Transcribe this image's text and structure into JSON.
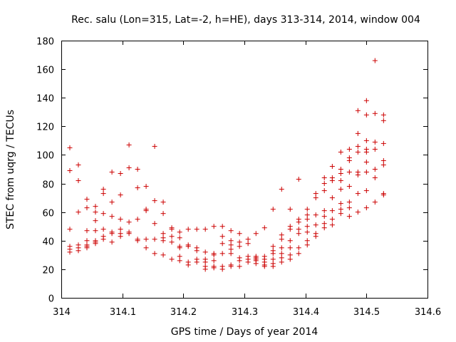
{
  "chart_data": {
    "type": "scatter",
    "title": "Rec. salu (Lon=315, Lat=-2, h=HE), days 313-314, 2014, window 004",
    "xlabel": "GPS time / Days of year 2014",
    "ylabel": "STEC from uqrg / TECUs",
    "xlim": [
      314,
      314.6
    ],
    "ylim": [
      0,
      180
    ],
    "xticks": [
      "314",
      "314.1",
      "314.2",
      "314.3",
      "314.4",
      "314.5",
      "314.6"
    ],
    "xtick_values": [
      314,
      314.1,
      314.2,
      314.3,
      314.4,
      314.5,
      314.6
    ],
    "yticks": [
      "0",
      "20",
      "40",
      "60",
      "80",
      "100",
      "120",
      "140",
      "160",
      "180"
    ],
    "ytick_values": [
      0,
      20,
      40,
      60,
      80,
      100,
      120,
      140,
      160,
      180
    ],
    "grid": false,
    "legend": "none",
    "marker": "plus",
    "color": "#cc0000",
    "series": [
      {
        "x": [
          314.014,
          314.014,
          314.014,
          314.014,
          314.014,
          314.014,
          314.028,
          314.028,
          314.028,
          314.028,
          314.028,
          314.028,
          314.042,
          314.042,
          314.042,
          314.042,
          314.042,
          314.042,
          314.042,
          314.056,
          314.056,
          314.056,
          314.056,
          314.056,
          314.056,
          314.056,
          314.069,
          314.069,
          314.069,
          314.069,
          314.069,
          314.069,
          314.083,
          314.083,
          314.083,
          314.083,
          314.083,
          314.083,
          314.097,
          314.097,
          314.097,
          314.097,
          314.097,
          314.097,
          314.111,
          314.111,
          314.111,
          314.111,
          314.111,
          314.125,
          314.125,
          314.125,
          314.125,
          314.125,
          314.139,
          314.139,
          314.139,
          314.139,
          314.139,
          314.153,
          314.153,
          314.153,
          314.153,
          314.153,
          314.167,
          314.167,
          314.167,
          314.167,
          314.167,
          314.167,
          314.181,
          314.181,
          314.181,
          314.181,
          314.181,
          314.194,
          314.194,
          314.194,
          314.194,
          314.194,
          314.194,
          314.208,
          314.208,
          314.208,
          314.208,
          314.208,
          314.222,
          314.222,
          314.222,
          314.222,
          314.222,
          314.236,
          314.236,
          314.236,
          314.236,
          314.236,
          314.236,
          314.25,
          314.25,
          314.25,
          314.25,
          314.25,
          314.25,
          314.264,
          314.264,
          314.264,
          314.264,
          314.264,
          314.264,
          314.278,
          314.278,
          314.278,
          314.278,
          314.278,
          314.278,
          314.278,
          314.292,
          314.292,
          314.292,
          314.292,
          314.292,
          314.292,
          314.306,
          314.306,
          314.306,
          314.306,
          314.306,
          314.319,
          314.319,
          314.319,
          314.319,
          314.319,
          314.319,
          314.333,
          314.333,
          314.333,
          314.333,
          314.333,
          314.333,
          314.347,
          314.347,
          314.347,
          314.347,
          314.347,
          314.347,
          314.347,
          314.361,
          314.361,
          314.361,
          314.361,
          314.361,
          314.361,
          314.361,
          314.375,
          314.375,
          314.375,
          314.375,
          314.375,
          314.375,
          314.375,
          314.389,
          314.389,
          314.389,
          314.389,
          314.389,
          314.389,
          314.389,
          314.403,
          314.403,
          314.403,
          314.403,
          314.403,
          314.403,
          314.403,
          314.417,
          314.417,
          314.417,
          314.417,
          314.417,
          314.417,
          314.431,
          314.431,
          314.431,
          314.431,
          314.431,
          314.431,
          314.431,
          314.444,
          314.444,
          314.444,
          314.444,
          314.444,
          314.444,
          314.444,
          314.458,
          314.458,
          314.458,
          314.458,
          314.458,
          314.458,
          314.458,
          314.458,
          314.472,
          314.472,
          314.472,
          314.472,
          314.472,
          314.472,
          314.472,
          314.472,
          314.486,
          314.486,
          314.486,
          314.486,
          314.486,
          314.486,
          314.486,
          314.486,
          314.5,
          314.5,
          314.5,
          314.5,
          314.5,
          314.5,
          314.5,
          314.5,
          314.5,
          314.514,
          314.514,
          314.514,
          314.514,
          314.514,
          314.514,
          314.514,
          314.528,
          314.528,
          314.528,
          314.528,
          314.528,
          314.528,
          314.528
        ],
        "y": [
          105,
          89,
          48,
          36,
          34,
          32,
          93,
          82,
          60,
          37,
          35,
          33,
          69,
          63,
          47,
          40,
          37,
          36,
          35,
          64,
          60,
          54,
          47,
          40,
          39,
          38,
          76,
          73,
          59,
          48,
          43,
          41,
          88,
          67,
          57,
          46,
          45,
          39,
          87,
          72,
          55,
          48,
          45,
          43,
          107,
          91,
          53,
          46,
          45,
          90,
          77,
          55,
          41,
          40,
          78,
          62,
          61,
          41,
          35,
          106,
          68,
          52,
          41,
          31,
          67,
          59,
          45,
          42,
          40,
          30,
          49,
          48,
          43,
          39,
          27,
          46,
          42,
          36,
          35,
          29,
          26,
          48,
          37,
          36,
          25,
          23,
          48,
          35,
          33,
          27,
          25,
          48,
          32,
          27,
          25,
          22,
          20,
          50,
          31,
          30,
          26,
          22,
          21,
          50,
          43,
          38,
          31,
          22,
          20,
          47,
          40,
          37,
          34,
          31,
          23,
          22,
          45,
          39,
          36,
          28,
          26,
          22,
          41,
          38,
          29,
          27,
          25,
          45,
          29,
          28,
          27,
          26,
          24,
          49,
          29,
          27,
          25,
          23,
          22,
          62,
          36,
          33,
          31,
          27,
          24,
          22,
          76,
          44,
          41,
          35,
          31,
          28,
          25,
          62,
          50,
          48,
          40,
          35,
          30,
          27,
          83,
          55,
          53,
          48,
          45,
          35,
          31,
          62,
          58,
          55,
          50,
          46,
          40,
          37,
          73,
          70,
          58,
          51,
          45,
          43,
          84,
          80,
          75,
          61,
          57,
          52,
          49,
          92,
          84,
          82,
          70,
          61,
          55,
          51,
          102,
          90,
          87,
          82,
          76,
          66,
          62,
          59,
          104,
          98,
          96,
          88,
          78,
          67,
          63,
          57,
          131,
          115,
          106,
          102,
          88,
          86,
          73,
          60,
          138,
          128,
          110,
          104,
          102,
          95,
          88,
          75,
          63,
          166,
          129,
          109,
          104,
          90,
          84,
          67,
          128,
          124,
          108,
          96,
          93,
          73,
          72
        ]
      }
    ]
  }
}
